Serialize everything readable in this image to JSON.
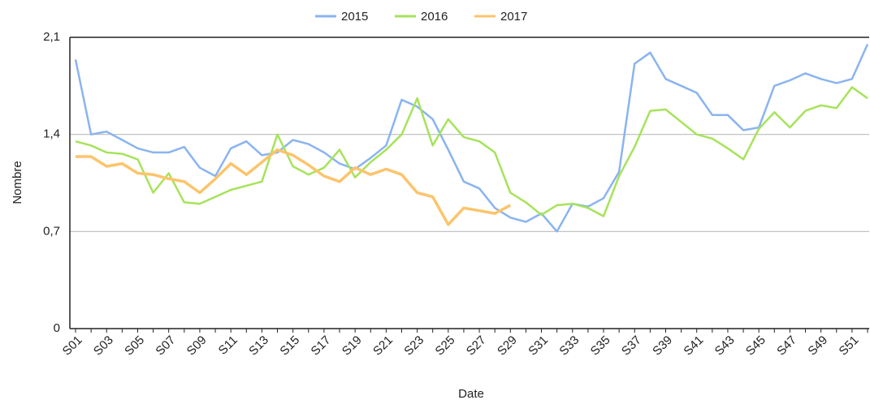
{
  "chart_data": {
    "type": "line",
    "x_label": "Date",
    "y_label": "Nombre",
    "categories": [
      "S01",
      null,
      "S03",
      null,
      "S05",
      null,
      "S07",
      null,
      "S09",
      null,
      "S11",
      null,
      "S13",
      null,
      "S15",
      null,
      "S17",
      null,
      "S19",
      null,
      "S21",
      null,
      "S23",
      null,
      "S25",
      null,
      "S27",
      null,
      "S29",
      null,
      "S31",
      null,
      "S33",
      null,
      "S35",
      null,
      "S37",
      null,
      "S39",
      null,
      "S41",
      null,
      "S43",
      null,
      "S45",
      null,
      "S47",
      null,
      "S49",
      null,
      "S51",
      null
    ],
    "series": [
      {
        "name": "2015",
        "color": "#8ab4f0",
        "values": [
          1.94,
          1.4,
          1.42,
          1.36,
          1.3,
          1.27,
          1.27,
          1.31,
          1.16,
          1.1,
          1.3,
          1.35,
          1.25,
          1.27,
          1.36,
          1.33,
          1.27,
          1.19,
          1.15,
          1.23,
          1.32,
          1.65,
          1.6,
          1.51,
          1.29,
          1.06,
          1.01,
          0.87,
          0.8,
          0.77,
          0.83,
          0.7,
          0.9,
          0.88,
          0.94,
          1.13,
          1.91,
          1.99,
          1.8,
          1.75,
          1.7,
          1.54,
          1.54,
          1.43,
          1.45,
          1.75,
          1.79,
          1.84,
          1.8,
          1.77,
          1.8,
          2.05
        ]
      },
      {
        "name": "2016",
        "color": "#a6e35a",
        "values": [
          1.35,
          1.32,
          1.27,
          1.26,
          1.22,
          0.98,
          1.12,
          0.91,
          0.9,
          0.95,
          1.0,
          1.03,
          1.06,
          1.4,
          1.17,
          1.11,
          1.16,
          1.29,
          1.09,
          1.2,
          1.29,
          1.4,
          1.66,
          1.32,
          1.51,
          1.38,
          1.35,
          1.27,
          0.98,
          0.91,
          0.82,
          0.89,
          0.9,
          0.87,
          0.81,
          1.1,
          1.31,
          1.57,
          1.58,
          1.49,
          1.4,
          1.37,
          1.3,
          1.22,
          1.44,
          1.56,
          1.45,
          1.57,
          1.61,
          1.59,
          1.74,
          1.66
        ]
      },
      {
        "name": "2017",
        "color": "#fcc46c",
        "values": [
          1.24,
          1.24,
          1.17,
          1.19,
          1.12,
          1.11,
          1.08,
          1.06,
          0.98,
          1.08,
          1.19,
          1.11,
          1.2,
          1.29,
          1.25,
          1.18,
          1.1,
          1.06,
          1.16,
          1.11,
          1.15,
          1.11,
          0.98,
          0.95,
          0.75,
          0.87,
          0.85,
          0.83,
          0.89,
          null,
          null,
          null,
          null,
          null,
          null,
          null,
          null,
          null,
          null,
          null,
          null,
          null,
          null,
          null,
          null,
          null,
          null,
          null,
          null,
          null,
          null,
          null
        ]
      }
    ],
    "ylim": [
      0,
      2.1
    ],
    "yticks": [
      {
        "value": 0,
        "label": "0"
      },
      {
        "value": 0.7,
        "label": "0,7"
      },
      {
        "value": 1.4,
        "label": "1,4"
      },
      {
        "value": 2.1,
        "label": "2,1"
      }
    ],
    "grid": true,
    "legend": "top"
  }
}
